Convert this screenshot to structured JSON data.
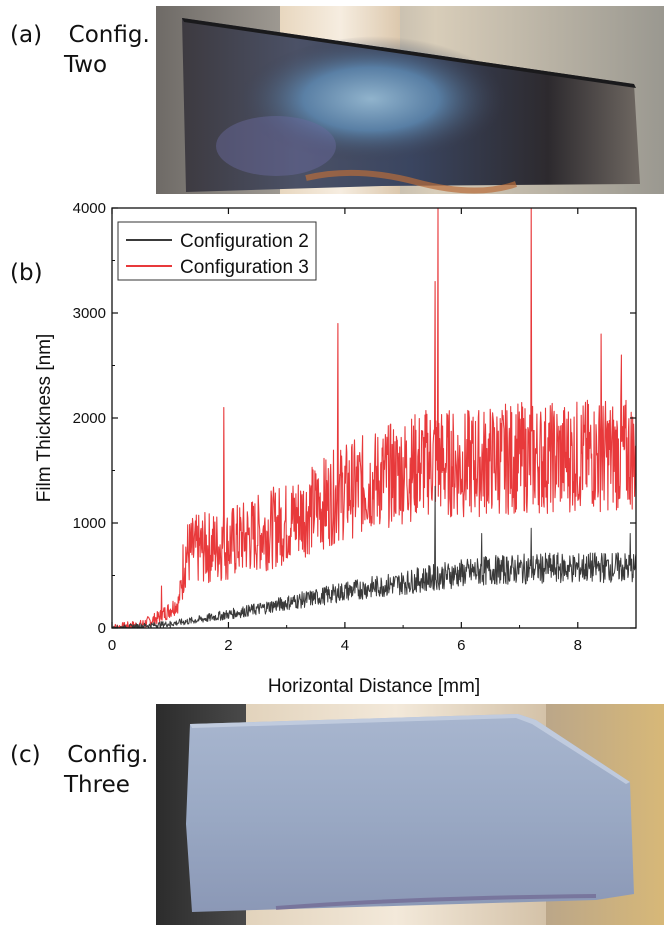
{
  "panels": {
    "a": {
      "letter": "(a)",
      "line1": "Config.",
      "line2": "Two"
    },
    "b": {
      "letter": "(b)"
    },
    "c": {
      "letter": "(c)",
      "line1": "Config.",
      "line2": "Three"
    }
  },
  "colors": {
    "config2": "#3a3a3a",
    "config3": "#e8393b"
  },
  "chart_data": {
    "type": "line",
    "xlabel": "Horizontal Distance [mm]",
    "ylabel": "Film Thickness [nm]",
    "xlim": [
      0,
      9
    ],
    "ylim": [
      0,
      4000
    ],
    "xticks": [
      0,
      2,
      4,
      6,
      8
    ],
    "yticks": [
      0,
      1000,
      2000,
      3000,
      4000
    ],
    "grid": false,
    "legend_position": "top-left",
    "series": [
      {
        "name": "Configuration 2",
        "color": "#3a3a3a",
        "x": [
          0,
          0.5,
          1.0,
          1.5,
          2.0,
          2.5,
          3.0,
          3.5,
          4.0,
          4.5,
          5.0,
          5.5,
          6.0,
          6.5,
          7.0,
          7.5,
          8.0,
          8.5,
          9.0
        ],
        "y": [
          0,
          20,
          40,
          80,
          130,
          180,
          240,
          290,
          350,
          390,
          430,
          480,
          520,
          550,
          560,
          570,
          570,
          580,
          570
        ],
        "spikes": [
          [
            5.55,
            1350
          ],
          [
            6.35,
            900
          ],
          [
            7.2,
            950
          ],
          [
            8.9,
            900
          ]
        ]
      },
      {
        "name": "Configuration 3",
        "color": "#e8393b",
        "x": [
          0,
          0.5,
          0.8,
          1.0,
          1.15,
          1.25,
          1.5,
          2.0,
          2.5,
          3.0,
          3.5,
          4.0,
          4.5,
          5.0,
          5.5,
          6.0,
          6.5,
          7.0,
          7.5,
          8.0,
          8.5,
          9.0
        ],
        "y": [
          0,
          30,
          100,
          180,
          250,
          700,
          750,
          800,
          900,
          1000,
          1150,
          1300,
          1400,
          1500,
          1600,
          1550,
          1600,
          1620,
          1620,
          1640,
          1650,
          1650
        ],
        "spikes": [
          [
            0.85,
            400
          ],
          [
            1.92,
            2100
          ],
          [
            3.88,
            2900
          ],
          [
            5.55,
            3300
          ],
          [
            5.6,
            4000
          ],
          [
            7.2,
            4000
          ],
          [
            8.4,
            2800
          ],
          [
            8.75,
            2600
          ]
        ]
      }
    ]
  }
}
